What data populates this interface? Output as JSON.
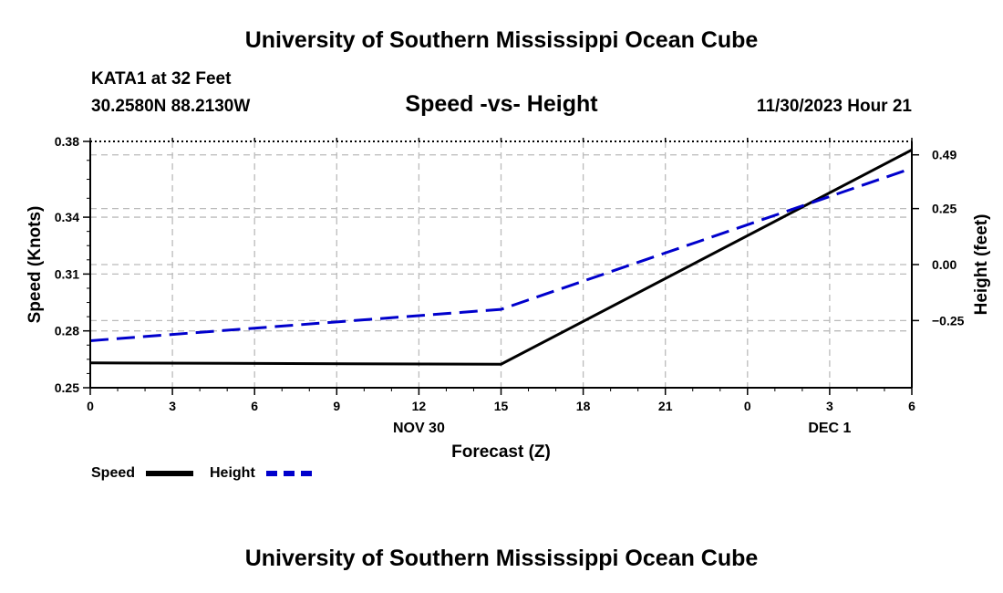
{
  "header": {
    "title": "University of Southern Mississippi Ocean Cube",
    "station": "KATA1 at 32 Feet",
    "latlon": "30.2580N  88.2130W",
    "subtitle": "Speed -vs- Height",
    "datetime": "11/30/2023 Hour 21"
  },
  "footer": {
    "title": "University of Southern Mississippi Ocean Cube"
  },
  "legend": {
    "speed_label": "Speed",
    "height_label": "Height"
  },
  "colors": {
    "speed": "#000000",
    "height": "#0000cc",
    "grid": "#bbbbbb"
  },
  "chart_data": {
    "type": "line",
    "x": [
      0,
      3,
      6,
      9,
      12,
      15,
      18,
      21,
      24,
      27,
      30
    ],
    "xticklabels": [
      "0",
      "3",
      "6",
      "9",
      "12",
      "15",
      "18",
      "21",
      "0",
      "3",
      "6"
    ],
    "date_labels": [
      {
        "x": 12,
        "label": "NOV 30"
      },
      {
        "x": 27,
        "label": "DEC 1"
      }
    ],
    "xlabel": "Forecast (Z)",
    "xlim": [
      0,
      30
    ],
    "ylabel_left": "Speed (Knots)",
    "ylim_left": [
      0.25,
      0.38
    ],
    "yticks_left": [
      0.25,
      0.28,
      0.31,
      0.34,
      0.38
    ],
    "ylabel_right": "Height (feet)",
    "ylim_right": [
      -0.55,
      0.55
    ],
    "yticks_right": [
      -0.25,
      0.0,
      0.25,
      0.49
    ],
    "yticklabels_right": [
      "−0.25",
      "0.00",
      "0.25",
      "0.49"
    ],
    "grid": true,
    "series": [
      {
        "name": "Speed",
        "axis": "left",
        "style": "solid",
        "x": [
          0,
          15,
          30
        ],
        "values": [
          0.2631,
          0.2624,
          0.3755
        ]
      },
      {
        "name": "Height",
        "axis": "right",
        "style": "dashed",
        "x": [
          0,
          15,
          30
        ],
        "values": [
          -0.34,
          -0.2,
          0.43
        ]
      }
    ]
  }
}
